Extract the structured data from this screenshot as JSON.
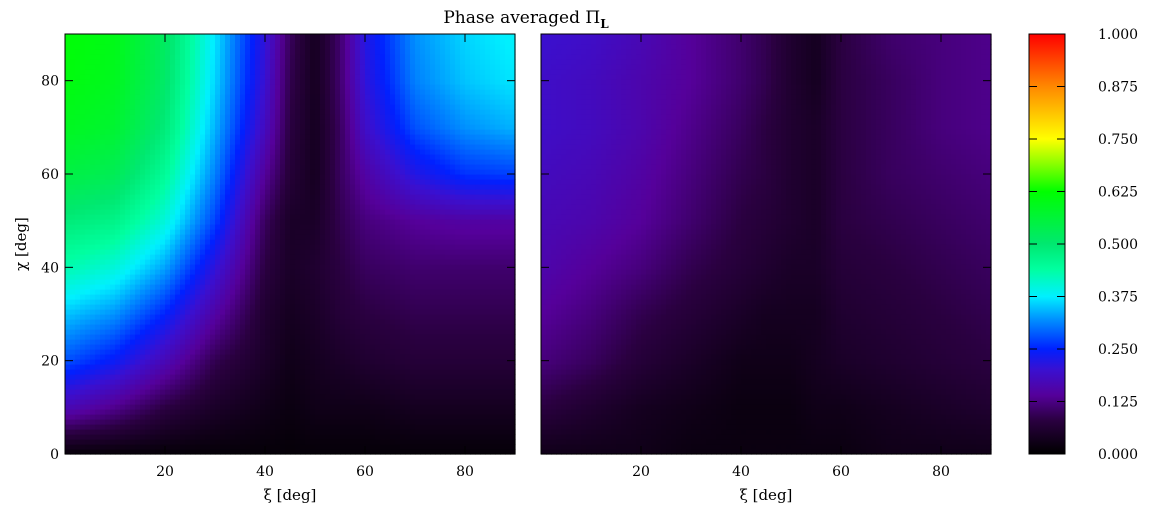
{
  "chart_data": {
    "type": "heatmap",
    "title": "Phase averaged",
    "title_symbol": "Π",
    "title_subscript": "L",
    "colormap": {
      "name": "rainbow",
      "stops": [
        [
          0.0,
          "#000000"
        ],
        [
          0.08,
          "#2a0040"
        ],
        [
          0.14,
          "#55009a"
        ],
        [
          0.2,
          "#3a10d0"
        ],
        [
          0.25,
          "#0020ff"
        ],
        [
          0.32,
          "#0090ff"
        ],
        [
          0.375,
          "#00f0ff"
        ],
        [
          0.44,
          "#00ffa0"
        ],
        [
          0.5,
          "#00e870"
        ],
        [
          0.625,
          "#00ff00"
        ],
        [
          0.69,
          "#88ff00"
        ],
        [
          0.75,
          "#ffff00"
        ],
        [
          0.875,
          "#ff8800"
        ],
        [
          1.0,
          "#ff0000"
        ]
      ]
    },
    "zlim": [
      0,
      1
    ],
    "colorbar": {
      "ticks": [
        "0.000",
        "0.125",
        "0.250",
        "0.375",
        "0.500",
        "0.625",
        "0.750",
        "0.875",
        "1.000"
      ],
      "values": [
        0,
        0.125,
        0.25,
        0.375,
        0.5,
        0.625,
        0.75,
        0.875,
        1.0
      ]
    },
    "panels": [
      {
        "id": "left",
        "xlabel": "ξ [deg]",
        "ylabel": "χ [deg]",
        "xlim": [
          0,
          90
        ],
        "ylim": [
          0,
          90
        ],
        "xticks": [
          20,
          40,
          60,
          80
        ],
        "yticks": [
          0,
          20,
          40,
          60,
          80
        ],
        "grid_x": [
          0,
          10,
          20,
          30,
          40,
          45,
          50,
          55,
          60,
          70,
          80,
          90
        ],
        "grid_y": [
          0,
          10,
          20,
          30,
          40,
          50,
          60,
          70,
          80,
          90
        ],
        "z": [
          [
            0.01,
            0.01,
            0.01,
            0.01,
            0.01,
            0.01,
            0.01,
            0.01,
            0.01,
            0.01,
            0.01,
            0.01
          ],
          [
            0.17,
            0.13,
            0.08,
            0.05,
            0.03,
            0.02,
            0.03,
            0.03,
            0.03,
            0.04,
            0.04,
            0.04
          ],
          [
            0.28,
            0.24,
            0.17,
            0.09,
            0.05,
            0.03,
            0.04,
            0.05,
            0.06,
            0.07,
            0.07,
            0.07
          ],
          [
            0.35,
            0.32,
            0.25,
            0.15,
            0.06,
            0.04,
            0.05,
            0.07,
            0.08,
            0.09,
            0.09,
            0.09
          ],
          [
            0.43,
            0.4,
            0.33,
            0.21,
            0.08,
            0.05,
            0.06,
            0.08,
            0.1,
            0.11,
            0.11,
            0.11
          ],
          [
            0.49,
            0.47,
            0.4,
            0.27,
            0.1,
            0.05,
            0.05,
            0.09,
            0.12,
            0.14,
            0.15,
            0.15
          ],
          [
            0.55,
            0.53,
            0.45,
            0.31,
            0.14,
            0.07,
            0.04,
            0.1,
            0.15,
            0.22,
            0.26,
            0.27
          ],
          [
            0.59,
            0.57,
            0.49,
            0.34,
            0.18,
            0.08,
            0.04,
            0.1,
            0.19,
            0.28,
            0.32,
            0.34
          ],
          [
            0.61,
            0.59,
            0.51,
            0.36,
            0.2,
            0.09,
            0.04,
            0.11,
            0.21,
            0.31,
            0.35,
            0.37
          ],
          [
            0.62,
            0.6,
            0.52,
            0.37,
            0.21,
            0.1,
            0.04,
            0.11,
            0.22,
            0.32,
            0.36,
            0.38
          ]
        ]
      },
      {
        "id": "right",
        "xlabel": "ξ [deg]",
        "ylabel": "",
        "xlim": [
          0,
          90
        ],
        "ylim": [
          0,
          90
        ],
        "xticks": [
          20,
          40,
          60,
          80
        ],
        "yticks": [
          0,
          20,
          40,
          60,
          80
        ],
        "grid_x": [
          0,
          10,
          20,
          30,
          40,
          45,
          50,
          55,
          60,
          70,
          80,
          90
        ],
        "grid_y": [
          0,
          10,
          20,
          30,
          40,
          50,
          60,
          70,
          80,
          90
        ],
        "z": [
          [
            0.03,
            0.03,
            0.03,
            0.02,
            0.02,
            0.02,
            0.02,
            0.02,
            0.02,
            0.03,
            0.03,
            0.03
          ],
          [
            0.08,
            0.06,
            0.04,
            0.03,
            0.02,
            0.02,
            0.02,
            0.03,
            0.03,
            0.04,
            0.05,
            0.06
          ],
          [
            0.12,
            0.1,
            0.07,
            0.05,
            0.03,
            0.03,
            0.03,
            0.04,
            0.05,
            0.06,
            0.07,
            0.08
          ],
          [
            0.14,
            0.12,
            0.09,
            0.07,
            0.05,
            0.04,
            0.04,
            0.04,
            0.06,
            0.07,
            0.08,
            0.09
          ],
          [
            0.16,
            0.14,
            0.12,
            0.09,
            0.07,
            0.06,
            0.05,
            0.05,
            0.07,
            0.08,
            0.09,
            0.1
          ],
          [
            0.17,
            0.16,
            0.14,
            0.11,
            0.08,
            0.07,
            0.06,
            0.05,
            0.08,
            0.09,
            0.1,
            0.11
          ],
          [
            0.18,
            0.17,
            0.15,
            0.12,
            0.09,
            0.08,
            0.06,
            0.05,
            0.08,
            0.1,
            0.11,
            0.12
          ],
          [
            0.19,
            0.18,
            0.16,
            0.13,
            0.1,
            0.08,
            0.06,
            0.05,
            0.08,
            0.1,
            0.12,
            0.13
          ],
          [
            0.19,
            0.18,
            0.16,
            0.14,
            0.11,
            0.09,
            0.06,
            0.04,
            0.08,
            0.1,
            0.12,
            0.13
          ],
          [
            0.2,
            0.19,
            0.17,
            0.14,
            0.11,
            0.09,
            0.06,
            0.04,
            0.08,
            0.11,
            0.12,
            0.13
          ]
        ]
      }
    ]
  }
}
